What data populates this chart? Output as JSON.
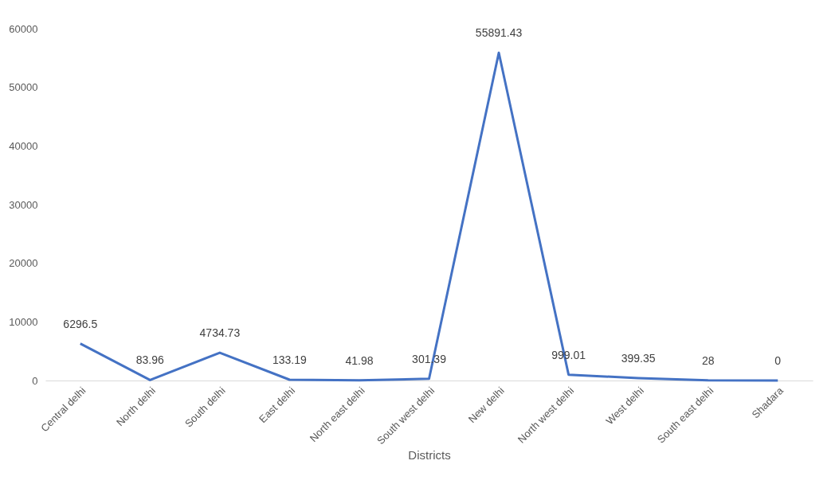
{
  "chart_data": {
    "type": "line",
    "xlabel": "Districts",
    "categories": [
      "Central delhi",
      "North delhi",
      "South delhi",
      "East delhi",
      "North east delhi",
      "South west delhi",
      "New delhi",
      "North west delhi",
      "West delhi",
      "South east delhi",
      "Shadara"
    ],
    "series": [
      {
        "color": "#4472c4",
        "values": [
          6296.5,
          83.96,
          4734.73,
          133.19,
          41.98,
          301.39,
          55891.43,
          999.01,
          399.35,
          28,
          0
        ]
      }
    ],
    "ylim": [
      0,
      60000
    ],
    "yticks": [
      0,
      10000,
      20000,
      30000,
      40000,
      50000,
      60000
    ],
    "grid": false,
    "data_labels": true,
    "marker": "none",
    "line_style": "solid",
    "legend": false
  }
}
